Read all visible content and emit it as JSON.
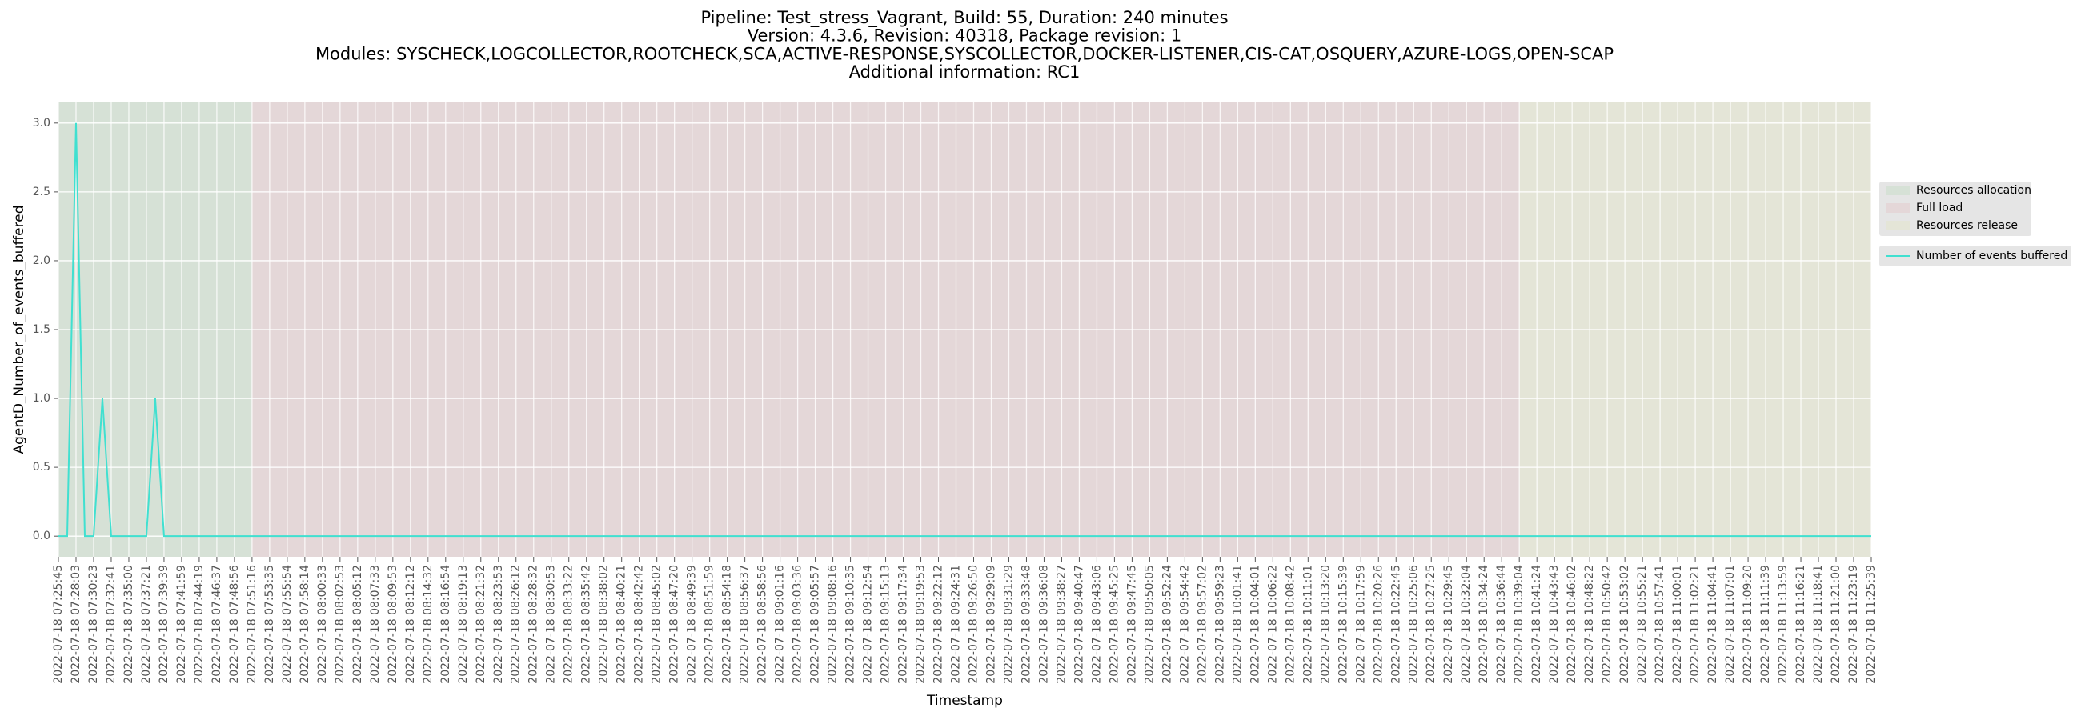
{
  "chart_data": {
    "type": "line",
    "title_lines": [
      "Pipeline: Test_stress_Vagrant, Build: 55, Duration: 240 minutes",
      "Version: 4.3.6, Revision: 40318, Package revision: 1",
      "Modules: SYSCHECK,LOGCOLLECTOR,ROOTCHECK,SCA,ACTIVE-RESPONSE,SYSCOLLECTOR,DOCKER-LISTENER,CIS-CAT,OSQUERY,AZURE-LOGS,OPEN-SCAP",
      "Additional information: RC1"
    ],
    "x_label": "Timestamp",
    "y_label": "AgentD_Number_of_events_buffered",
    "categories": [
      "2022-07-18 07:25:45",
      null,
      "2022-07-18 07:28:03",
      null,
      "2022-07-18 07:30:23",
      null,
      "2022-07-18 07:32:41",
      null,
      "2022-07-18 07:35:00",
      null,
      "2022-07-18 07:37:21",
      null,
      "2022-07-18 07:39:39",
      null,
      "2022-07-18 07:41:59",
      null,
      "2022-07-18 07:44:19",
      null,
      "2022-07-18 07:46:37",
      null,
      "2022-07-18 07:48:56",
      null,
      "2022-07-18 07:51:16",
      null,
      "2022-07-18 07:53:35",
      null,
      "2022-07-18 07:55:54",
      null,
      "2022-07-18 07:58:14",
      null,
      "2022-07-18 08:00:33",
      null,
      "2022-07-18 08:02:53",
      null,
      "2022-07-18 08:05:12",
      null,
      "2022-07-18 08:07:33",
      null,
      "2022-07-18 08:09:53",
      null,
      "2022-07-18 08:12:12",
      null,
      "2022-07-18 08:14:32",
      null,
      "2022-07-18 08:16:54",
      null,
      "2022-07-18 08:19:13",
      null,
      "2022-07-18 08:21:32",
      null,
      "2022-07-18 08:23:53",
      null,
      "2022-07-18 08:26:12",
      null,
      "2022-07-18 08:28:32",
      null,
      "2022-07-18 08:30:53",
      null,
      "2022-07-18 08:33:22",
      null,
      "2022-07-18 08:35:42",
      null,
      "2022-07-18 08:38:02",
      null,
      "2022-07-18 08:40:21",
      null,
      "2022-07-18 08:42:42",
      null,
      "2022-07-18 08:45:02",
      null,
      "2022-07-18 08:47:20",
      null,
      "2022-07-18 08:49:39",
      null,
      "2022-07-18 08:51:59",
      null,
      "2022-07-18 08:54:18",
      null,
      "2022-07-18 08:56:37",
      null,
      "2022-07-18 08:58:56",
      null,
      "2022-07-18 09:01:16",
      null,
      "2022-07-18 09:03:36",
      null,
      "2022-07-18 09:05:57",
      null,
      "2022-07-18 09:08:16",
      null,
      "2022-07-18 09:10:35",
      null,
      "2022-07-18 09:12:54",
      null,
      "2022-07-18 09:15:13",
      null,
      "2022-07-18 09:17:34",
      null,
      "2022-07-18 09:19:53",
      null,
      "2022-07-18 09:22:12",
      null,
      "2022-07-18 09:24:31",
      null,
      "2022-07-18 09:26:50",
      null,
      "2022-07-18 09:29:09",
      null,
      "2022-07-18 09:31:29",
      null,
      "2022-07-18 09:33:48",
      null,
      "2022-07-18 09:36:08",
      null,
      "2022-07-18 09:38:27",
      null,
      "2022-07-18 09:40:47",
      null,
      "2022-07-18 09:43:06",
      null,
      "2022-07-18 09:45:25",
      null,
      "2022-07-18 09:47:45",
      null,
      "2022-07-18 09:50:05",
      null,
      "2022-07-18 09:52:24",
      null,
      "2022-07-18 09:54:42",
      null,
      "2022-07-18 09:57:02",
      null,
      "2022-07-18 09:59:23",
      null,
      "2022-07-18 10:01:41",
      null,
      "2022-07-18 10:04:01",
      null,
      "2022-07-18 10:06:22",
      null,
      "2022-07-18 10:08:42",
      null,
      "2022-07-18 10:11:01",
      null,
      "2022-07-18 10:13:20",
      null,
      "2022-07-18 10:15:39",
      null,
      "2022-07-18 10:17:59",
      null,
      "2022-07-18 10:20:26",
      null,
      "2022-07-18 10:22:45",
      null,
      "2022-07-18 10:25:06",
      null,
      "2022-07-18 10:27:25",
      null,
      "2022-07-18 10:29:45",
      null,
      "2022-07-18 10:32:04",
      null,
      "2022-07-18 10:34:24",
      null,
      "2022-07-18 10:36:44",
      null,
      "2022-07-18 10:39:04",
      null,
      "2022-07-18 10:41:24",
      null,
      "2022-07-18 10:43:43",
      null,
      "2022-07-18 10:46:02",
      null,
      "2022-07-18 10:48:22",
      null,
      "2022-07-18 10:50:42",
      null,
      "2022-07-18 10:53:02",
      null,
      "2022-07-18 10:55:21",
      null,
      "2022-07-18 10:57:41",
      null,
      "2022-07-18 11:00:01",
      null,
      "2022-07-18 11:02:21",
      null,
      "2022-07-18 11:04:41",
      null,
      "2022-07-18 11:07:01",
      null,
      "2022-07-18 11:09:20",
      null,
      "2022-07-18 11:11:39",
      null,
      "2022-07-18 11:13:59",
      null,
      "2022-07-18 11:16:21",
      null,
      "2022-07-18 11:18:41",
      null,
      "2022-07-18 11:21:00",
      null,
      "2022-07-18 11:23:19",
      null,
      "2022-07-18 11:25:39"
    ],
    "series": [
      {
        "name": "Number of events buffered",
        "color": "#40e0d0",
        "values": [
          0,
          0,
          3,
          0,
          0,
          1,
          0,
          0,
          0,
          0,
          0,
          1,
          0,
          0,
          0,
          0,
          0,
          0,
          0,
          0,
          0,
          0,
          0,
          0,
          0,
          0,
          0,
          0,
          0,
          0,
          0,
          0,
          0,
          0,
          0,
          0,
          0,
          0,
          0,
          0,
          0,
          0,
          0,
          0,
          0,
          0,
          0,
          0,
          0,
          0,
          0,
          0,
          0,
          0,
          0,
          0,
          0,
          0,
          0,
          0,
          0,
          0,
          0,
          0,
          0,
          0,
          0,
          0,
          0,
          0,
          0,
          0,
          0,
          0,
          0,
          0,
          0,
          0,
          0,
          0,
          0,
          0,
          0,
          0,
          0,
          0,
          0,
          0,
          0,
          0,
          0,
          0,
          0,
          0,
          0,
          0,
          0,
          0,
          0,
          0,
          0,
          0,
          0,
          0,
          0,
          0,
          0,
          0,
          0,
          0,
          0,
          0,
          0,
          0,
          0,
          0,
          0,
          0,
          0,
          0,
          0,
          0,
          0,
          0,
          0,
          0,
          0,
          0,
          0,
          0,
          0,
          0,
          0,
          0,
          0,
          0,
          0,
          0,
          0,
          0,
          0,
          0,
          0,
          0,
          0,
          0,
          0,
          0,
          0,
          0,
          0,
          0,
          0,
          0,
          0,
          0,
          0,
          0,
          0,
          0,
          0,
          0,
          0,
          0,
          0,
          0,
          0,
          0,
          0,
          0,
          0,
          0,
          0,
          0,
          0,
          0,
          0,
          0,
          0,
          0,
          0,
          0,
          0,
          0,
          0,
          0,
          0,
          0,
          0,
          0,
          0,
          0,
          0,
          0,
          0,
          0,
          0,
          0,
          0,
          0,
          0,
          0,
          0,
          0,
          0,
          0,
          0
        ]
      }
    ],
    "regions": [
      {
        "name": "Resources allocation",
        "color": "#d6e1d6",
        "start": "2022-07-18 07:25:45",
        "end": "2022-07-18 07:51:16"
      },
      {
        "name": "Full load",
        "color": "#e4d7d8",
        "start": "2022-07-18 07:51:16",
        "end": "2022-07-18 10:39:04"
      },
      {
        "name": "Resources release",
        "color": "#e4e5d7",
        "start": "2022-07-18 10:39:04",
        "end": "2022-07-18 11:25:39"
      }
    ],
    "ylim": [
      -0.15,
      3.15
    ],
    "yticks": [
      {
        "value": 0,
        "label": "0.0"
      },
      0.5,
      {
        "value": 1,
        "label": "1.0"
      },
      1.5,
      {
        "value": 2,
        "label": "2.0"
      },
      2.5,
      {
        "value": 3,
        "label": "3.0"
      }
    ],
    "grid": true,
    "legend": "right"
  }
}
